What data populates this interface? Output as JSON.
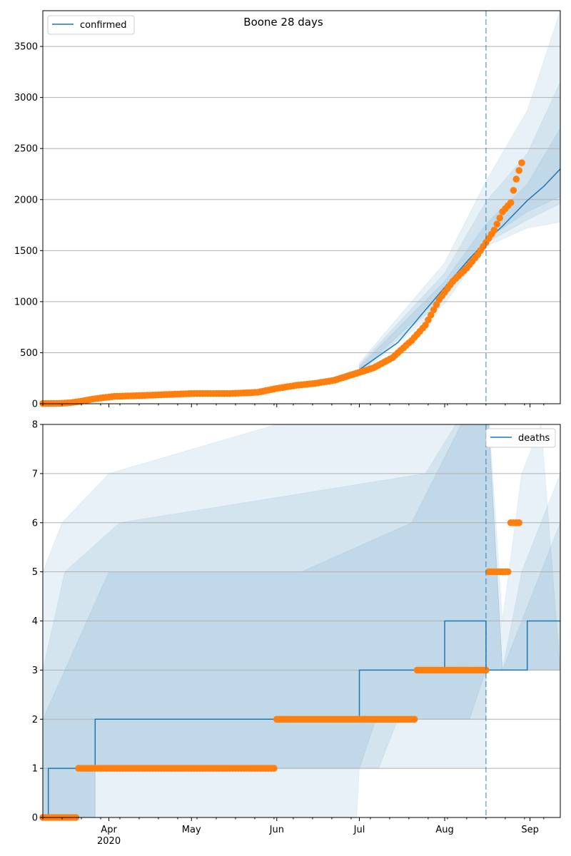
{
  "figure": {
    "title": "Boone 28 days"
  },
  "colors": {
    "model": "#1f77b4",
    "observed": "#ff7f0e",
    "band": "#1f77b4",
    "grid": "#b0b0b0"
  },
  "chart_data": [
    {
      "type": "line",
      "title": "Boone 28 days",
      "legend": {
        "label": "confirmed",
        "placement": "top-left"
      },
      "xlim": [
        "2020-03-08",
        "2020-09-12"
      ],
      "ylim": [
        0,
        3850
      ],
      "yticks": [
        0,
        500,
        1000,
        1500,
        2000,
        2500,
        3000,
        3500
      ],
      "grid": "y",
      "forecast_start": "2020-08-16",
      "model_line": {
        "name": "confirmed",
        "points": [
          [
            "2020-03-08",
            0
          ],
          [
            "2020-03-20",
            15
          ],
          [
            "2020-04-01",
            70
          ],
          [
            "2020-04-15",
            85
          ],
          [
            "2020-05-01",
            97
          ],
          [
            "2020-05-15",
            103
          ],
          [
            "2020-06-01",
            145
          ],
          [
            "2020-06-15",
            200
          ],
          [
            "2020-07-01",
            335
          ],
          [
            "2020-07-15",
            600
          ],
          [
            "2020-08-01",
            1140
          ],
          [
            "2020-08-10",
            1420
          ],
          [
            "2020-08-16",
            1590
          ],
          [
            "2020-08-22",
            1740
          ],
          [
            "2020-08-31",
            1990
          ],
          [
            "2020-09-06",
            2130
          ],
          [
            "2020-09-12",
            2300
          ]
        ]
      },
      "bands": [
        {
          "upper": [
            [
              "2020-07-01",
              400
            ],
            [
              "2020-08-01",
              1380
            ],
            [
              "2020-08-16",
              2180
            ],
            [
              "2020-08-31",
              2870
            ],
            [
              "2020-09-12",
              3850
            ]
          ],
          "lower": [
            [
              "2020-07-01",
              280
            ],
            [
              "2020-08-01",
              980
            ],
            [
              "2020-08-16",
              1540
            ],
            [
              "2020-08-31",
              1720
            ],
            [
              "2020-09-12",
              1780
            ]
          ]
        },
        {
          "upper": [
            [
              "2020-07-01",
              380
            ],
            [
              "2020-08-01",
              1280
            ],
            [
              "2020-08-16",
              1980
            ],
            [
              "2020-08-31",
              2450
            ],
            [
              "2020-09-12",
              3150
            ]
          ],
          "lower": [
            [
              "2020-07-01",
              295
            ],
            [
              "2020-08-01",
              1040
            ],
            [
              "2020-08-16",
              1575
            ],
            [
              "2020-08-31",
              1800
            ],
            [
              "2020-09-12",
              1960
            ]
          ]
        },
        {
          "upper": [
            [
              "2020-07-01",
              360
            ],
            [
              "2020-08-01",
              1200
            ],
            [
              "2020-08-16",
              1760
            ],
            [
              "2020-08-31",
              2150
            ],
            [
              "2020-09-12",
              2700
            ]
          ],
          "lower": [
            [
              "2020-07-01",
              310
            ],
            [
              "2020-08-01",
              1090
            ],
            [
              "2020-08-16",
              1610
            ],
            [
              "2020-08-31",
              1880
            ],
            [
              "2020-09-12",
              2030
            ]
          ]
        }
      ],
      "observed": [
        [
          "2020-03-08",
          2
        ],
        [
          "2020-03-14",
          3
        ],
        [
          "2020-03-18",
          10
        ],
        [
          "2020-03-22",
          25
        ],
        [
          "2020-03-26",
          45
        ],
        [
          "2020-03-30",
          60
        ],
        [
          "2020-04-03",
          72
        ],
        [
          "2020-04-10",
          78
        ],
        [
          "2020-04-20",
          88
        ],
        [
          "2020-05-01",
          100
        ],
        [
          "2020-05-15",
          100
        ],
        [
          "2020-05-25",
          112
        ],
        [
          "2020-06-01",
          150
        ],
        [
          "2020-06-08",
          180
        ],
        [
          "2020-06-15",
          200
        ],
        [
          "2020-06-22",
          230
        ],
        [
          "2020-06-29",
          290
        ],
        [
          "2020-07-06",
          350
        ],
        [
          "2020-07-13",
          450
        ],
        [
          "2020-07-20",
          620
        ],
        [
          "2020-07-25",
          770
        ],
        [
          "2020-07-30",
          1020
        ],
        [
          "2020-08-04",
          1200
        ],
        [
          "2020-08-09",
          1330
        ],
        [
          "2020-08-13",
          1460
        ],
        [
          "2020-08-16",
          1580
        ],
        [
          "2020-08-19",
          1700
        ],
        [
          "2020-08-22",
          1880
        ],
        [
          "2020-08-25",
          1970
        ],
        [
          "2020-08-26",
          2090
        ],
        [
          "2020-08-27",
          2200
        ],
        [
          "2020-08-28",
          2285
        ],
        [
          "2020-08-29",
          2360
        ]
      ]
    },
    {
      "type": "line",
      "legend": {
        "label": "deaths",
        "placement": "top-right"
      },
      "xlim": [
        "2020-03-08",
        "2020-09-12"
      ],
      "ylim": [
        0,
        8
      ],
      "yticks": [
        0,
        1,
        2,
        3,
        4,
        5,
        6,
        7,
        8
      ],
      "grid": "y",
      "xticks": [
        {
          "date": "2020-04-01",
          "label": "Apr",
          "sublabel": "2020"
        },
        {
          "date": "2020-05-01",
          "label": "May"
        },
        {
          "date": "2020-06-01",
          "label": "Jun"
        },
        {
          "date": "2020-07-01",
          "label": "Jul"
        },
        {
          "date": "2020-08-01",
          "label": "Aug"
        },
        {
          "date": "2020-09-01",
          "label": "Sep"
        }
      ],
      "forecast_start": "2020-08-16",
      "model_line": {
        "name": "deaths",
        "steps": [
          [
            "2020-03-08",
            0
          ],
          [
            "2020-03-10",
            1
          ],
          [
            "2020-03-27",
            2
          ],
          [
            "2020-07-01",
            3
          ],
          [
            "2020-08-01",
            4
          ],
          [
            "2020-08-16",
            3
          ],
          [
            "2020-08-31",
            4
          ]
        ]
      },
      "bands": [
        {
          "upper": [
            [
              "2020-03-08",
              5
            ],
            [
              "2020-03-15",
              6
            ],
            [
              "2020-04-01",
              7
            ],
            [
              "2020-06-01",
              8
            ],
            [
              "2020-08-06",
              9
            ],
            [
              "2020-08-16",
              9
            ],
            [
              "2020-08-22",
              4
            ],
            [
              "2020-08-29",
              7
            ],
            [
              "2020-09-05",
              8
            ]
          ],
          "lower": [
            [
              "2020-03-08",
              0
            ],
            [
              "2020-06-30",
              0
            ],
            [
              "2020-07-01",
              1
            ],
            [
              "2020-08-16",
              1
            ],
            [
              "2020-08-16",
              3
            ],
            [
              "2020-09-12",
              3
            ]
          ]
        },
        {
          "upper": [
            [
              "2020-03-08",
              3
            ],
            [
              "2020-03-16",
              5
            ],
            [
              "2020-04-05",
              6
            ],
            [
              "2020-07-25",
              7
            ],
            [
              "2020-08-16",
              9
            ],
            [
              "2020-08-22",
              3
            ],
            [
              "2020-08-29",
              5
            ],
            [
              "2020-09-05",
              6
            ],
            [
              "2020-09-12",
              7
            ]
          ],
          "lower": [
            [
              "2020-03-08",
              0
            ],
            [
              "2020-03-27",
              0
            ],
            [
              "2020-03-27",
              1
            ],
            [
              "2020-07-01",
              1
            ],
            [
              "2020-07-07",
              2
            ],
            [
              "2020-08-16",
              2
            ],
            [
              "2020-08-16",
              3
            ],
            [
              "2020-09-12",
              3
            ]
          ]
        },
        {
          "upper": [
            [
              "2020-03-08",
              2
            ],
            [
              "2020-03-16",
              3
            ],
            [
              "2020-04-01",
              5
            ],
            [
              "2020-06-10",
              5
            ],
            [
              "2020-07-20",
              6
            ],
            [
              "2020-08-16",
              9
            ],
            [
              "2020-08-22",
              3
            ],
            [
              "2020-08-29",
              4
            ],
            [
              "2020-09-05",
              5
            ],
            [
              "2020-09-12",
              6
            ]
          ],
          "lower": [
            [
              "2020-03-08",
              0
            ],
            [
              "2020-03-27",
              0
            ],
            [
              "2020-03-27",
              1
            ],
            [
              "2020-07-08",
              1
            ],
            [
              "2020-07-15",
              2
            ],
            [
              "2020-08-10",
              2
            ],
            [
              "2020-08-16",
              3
            ],
            [
              "2020-09-12",
              3
            ]
          ]
        }
      ],
      "observed": [
        {
          "from": "2020-03-08",
          "to": "2020-03-20",
          "value": 0
        },
        {
          "from": "2020-03-21",
          "to": "2020-05-31",
          "value": 1
        },
        {
          "from": "2020-06-01",
          "to": "2020-07-21",
          "value": 2
        },
        {
          "from": "2020-07-22",
          "to": "2020-08-16",
          "value": 3
        },
        {
          "from": "2020-08-17",
          "to": "2020-08-24",
          "value": 5
        },
        {
          "from": "2020-08-25",
          "to": "2020-08-28",
          "value": 6
        }
      ]
    }
  ]
}
